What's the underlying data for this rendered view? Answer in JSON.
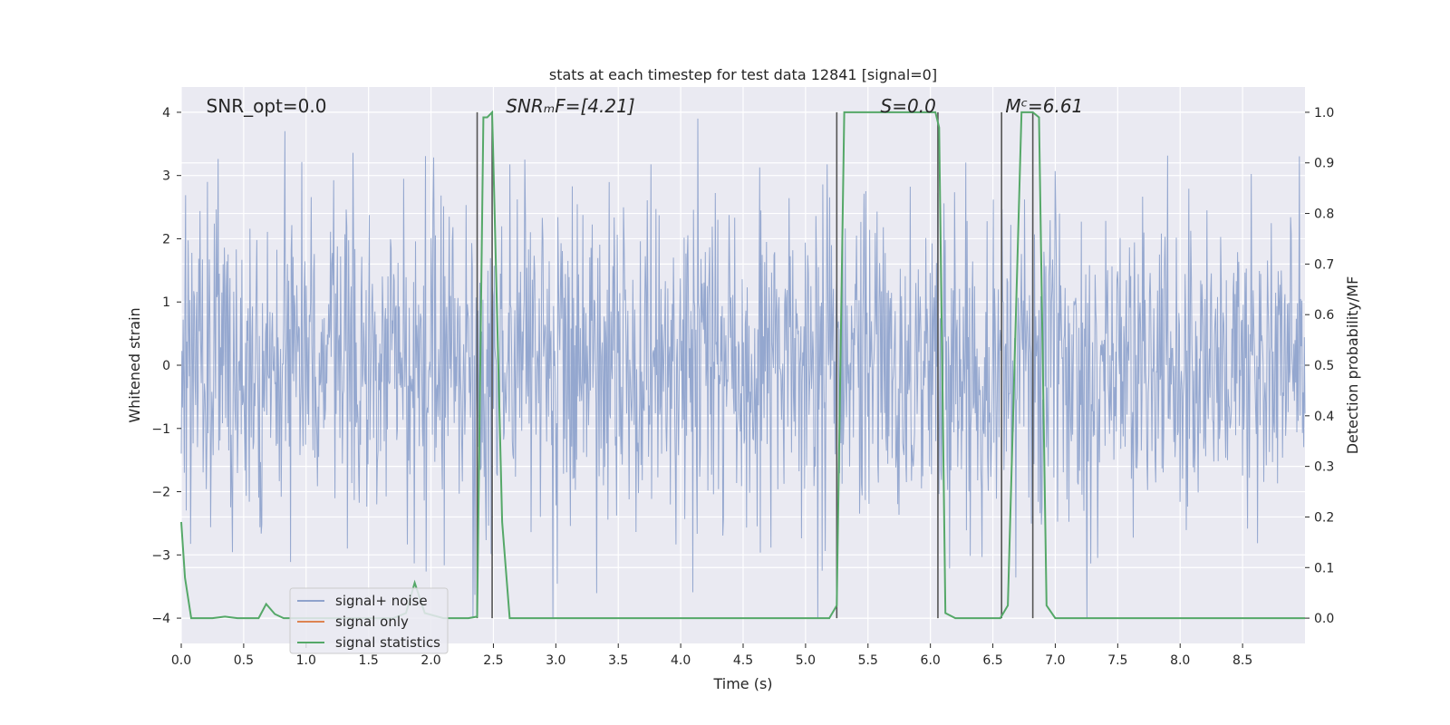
{
  "chart_data": {
    "type": "line",
    "title": "stats at each timestep for test data 12841 [signal=0]",
    "xlabel": "Time (s)",
    "ylabel_left": "Whitened strain",
    "ylabel_right": "Detection probability/MF",
    "xlim": [
      0.0,
      9.0
    ],
    "ylim_left": [
      -4.4,
      4.4
    ],
    "ylim_right": [
      -0.05,
      1.05
    ],
    "x_ticks": [
      "0.0",
      "0.5",
      "1.0",
      "1.5",
      "2.0",
      "2.5",
      "3.0",
      "3.5",
      "4.0",
      "4.5",
      "5.0",
      "5.5",
      "6.0",
      "6.5",
      "7.0",
      "7.5",
      "8.0",
      "8.5"
    ],
    "x_tick_values": [
      0.0,
      0.5,
      1.0,
      1.5,
      2.0,
      2.5,
      3.0,
      3.5,
      4.0,
      4.5,
      5.0,
      5.5,
      6.0,
      6.5,
      7.0,
      7.5,
      8.0,
      8.5
    ],
    "y_left_ticks": [
      "−4",
      "−3",
      "−2",
      "−1",
      "0",
      "1",
      "2",
      "3",
      "4"
    ],
    "y_left_tick_values": [
      -4,
      -3,
      -2,
      -1,
      0,
      1,
      2,
      3,
      4
    ],
    "y_right_ticks": [
      "0.0",
      "0.1",
      "0.2",
      "0.3",
      "0.4",
      "0.5",
      "0.6",
      "0.7",
      "0.8",
      "0.9",
      "1.0"
    ],
    "y_right_tick_values": [
      0.0,
      0.1,
      0.2,
      0.3,
      0.4,
      0.5,
      0.6,
      0.7,
      0.8,
      0.9,
      1.0
    ],
    "grid": true,
    "legend_position": "lower-left",
    "annotations": [
      {
        "text": "SNR_opt=0.0",
        "x": 0.2
      },
      {
        "text": "SNRₘF=[4.21]",
        "x": 2.6
      },
      {
        "text": "S=0.0",
        "x": 5.6
      },
      {
        "text": "Mᶜ=6.61",
        "x": 6.6
      }
    ],
    "vertical_lines_x": [
      2.37,
      2.49,
      5.25,
      6.06,
      6.57,
      6.82
    ],
    "series": [
      {
        "name": "signal+ noise",
        "color": "#8fa3cc",
        "axis": "left",
        "description_values": "dense whitened noise, roughly within ±2.4 with spikes to about ±3.8",
        "y_range_typical": [
          -2.4,
          2.4
        ],
        "y_range_peaks": [
          -4.0,
          3.9
        ]
      },
      {
        "name": "signal only",
        "color": "#dd8452",
        "axis": "left",
        "x": [],
        "y": []
      },
      {
        "name": "signal statistics",
        "color": "#55a868",
        "axis": "right",
        "x": [
          0.0,
          0.03,
          0.08,
          0.15,
          0.25,
          0.35,
          0.45,
          0.55,
          0.62,
          0.68,
          0.75,
          0.82,
          0.9,
          1.0,
          1.2,
          1.5,
          1.7,
          1.8,
          1.87,
          1.95,
          2.1,
          2.2,
          2.3,
          2.37,
          2.42,
          2.45,
          2.49,
          2.57,
          2.63,
          2.7,
          2.9,
          3.2,
          3.6,
          4.0,
          4.4,
          4.8,
          5.19,
          5.25,
          5.31,
          5.6,
          5.9,
          6.04,
          6.07,
          6.12,
          6.2,
          6.4,
          6.48,
          6.56,
          6.62,
          6.73,
          6.78,
          6.82,
          6.87,
          6.93,
          7.0,
          7.5,
          8.0,
          8.5,
          9.0
        ],
        "y": [
          0.19,
          0.08,
          0.0,
          0.0,
          0.0,
          0.003,
          0.0,
          0.0,
          0.0,
          0.028,
          0.008,
          0.0,
          0.0,
          0.0,
          0.0,
          0.0,
          0.0,
          0.01,
          0.07,
          0.01,
          0.0,
          0.0,
          0.0,
          0.003,
          0.99,
          0.99,
          1.0,
          0.19,
          0.0,
          0.0,
          0.0,
          0.0,
          0.0,
          0.0,
          0.0,
          0.0,
          0.0,
          0.025,
          1.0,
          1.0,
          1.0,
          1.0,
          0.97,
          0.01,
          0.0,
          0.0,
          0.0,
          0.0,
          0.025,
          1.0,
          1.0,
          1.0,
          0.99,
          0.025,
          0.0,
          0.0,
          0.0,
          0.0,
          0.0
        ]
      }
    ]
  }
}
